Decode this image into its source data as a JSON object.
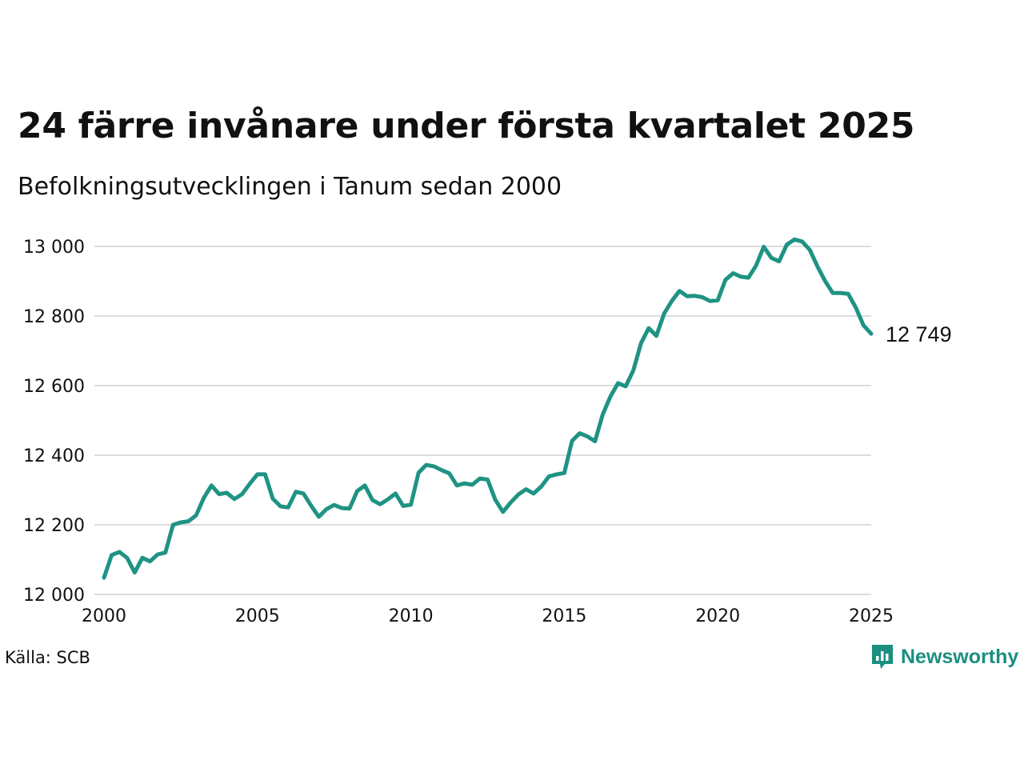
{
  "header": {
    "title": "24 färre invånare under första kvartalet 2025",
    "subtitle": "Befolkningsutvecklingen i Tanum sedan 2000"
  },
  "footer": {
    "source": "Källa: SCB",
    "brand": "Newsworthy"
  },
  "colors": {
    "line": "#1f9383",
    "grid": "#dddddd",
    "brand": "#1a8f80"
  },
  "chart_data": {
    "type": "line",
    "title": "24 färre invånare under första kvartalet 2025",
    "subtitle": "Befolkningsutvecklingen i Tanum sedan 2000",
    "xlabel": "",
    "ylabel": "",
    "xlim": [
      2000,
      2025
    ],
    "ylim": [
      12000,
      13000
    ],
    "x_ticks": [
      2000,
      2005,
      2010,
      2015,
      2020,
      2025
    ],
    "x_tick_labels": [
      "2000",
      "2005",
      "2010",
      "2015",
      "2020",
      "2025"
    ],
    "y_ticks": [
      12000,
      12200,
      12400,
      12600,
      12800,
      13000
    ],
    "y_tick_labels": [
      "12 000",
      "12 200",
      "12 400",
      "12 600",
      "12 800",
      "13 000"
    ],
    "grid": true,
    "legend": "none",
    "end_label": "12 749",
    "series": [
      {
        "x": [
          2000.0,
          2000.25,
          2000.5,
          2000.75,
          2001.0,
          2001.25,
          2001.5,
          2001.75,
          2002.0,
          2002.25,
          2002.5,
          2002.75,
          2003.0,
          2003.25,
          2003.5,
          2003.75,
          2004.0,
          2004.25,
          2004.5,
          2004.75,
          2005.0,
          2005.25,
          2005.5,
          2005.75,
          2006.0,
          2006.25,
          2006.5,
          2006.75,
          2007.0,
          2007.25,
          2007.5,
          2007.75,
          2008.0,
          2008.25,
          2008.5,
          2008.75,
          2009.0,
          2009.25,
          2009.5,
          2009.75,
          2010.0,
          2010.25,
          2010.5,
          2010.75,
          2011.0,
          2011.25,
          2011.5,
          2011.75,
          2012.0,
          2012.25,
          2012.5,
          2012.75,
          2013.0,
          2013.25,
          2013.5,
          2013.75,
          2014.0,
          2014.25,
          2014.5,
          2014.75,
          2015.0,
          2015.25,
          2015.5,
          2015.75,
          2016.0,
          2016.25,
          2016.5,
          2016.75,
          2017.0,
          2017.25,
          2017.5,
          2017.75,
          2018.0,
          2018.25,
          2018.5,
          2018.75,
          2019.0,
          2019.25,
          2019.5,
          2019.75,
          2020.0,
          2020.25,
          2020.5,
          2020.75,
          2021.0,
          2021.25,
          2021.5,
          2021.75,
          2022.0,
          2022.25,
          2022.5,
          2022.75,
          2023.0,
          2023.25,
          2023.5,
          2023.75,
          2024.0,
          2024.25,
          2024.5,
          2024.75,
          2025.0
        ],
        "values": [
          12048,
          12113,
          12122,
          12105,
          12063,
          12105,
          12095,
          12115,
          12120,
          12200,
          12207,
          12210,
          12227,
          12277,
          12313,
          12288,
          12292,
          12274,
          12288,
          12318,
          12345,
          12345,
          12275,
          12253,
          12250,
          12295,
          12290,
          12255,
          12223,
          12245,
          12257,
          12248,
          12247,
          12297,
          12313,
          12271,
          12259,
          12273,
          12290,
          12254,
          12258,
          12350,
          12372,
          12368,
          12357,
          12348,
          12313,
          12319,
          12315,
          12333,
          12330,
          12272,
          12237,
          12264,
          12287,
          12302,
          12290,
          12310,
          12339,
          12345,
          12349,
          12441,
          12463,
          12454,
          12440,
          12517,
          12568,
          12607,
          12598,
          12644,
          12722,
          12765,
          12743,
          12807,
          12843,
          12872,
          12857,
          12858,
          12854,
          12843,
          12845,
          12904,
          12923,
          12913,
          12910,
          12945,
          12999,
          12967,
          12957,
          13005,
          13020,
          13014,
          12990,
          12942,
          12900,
          12866,
          12866,
          12864,
          12824,
          12773,
          12749
        ]
      }
    ]
  }
}
